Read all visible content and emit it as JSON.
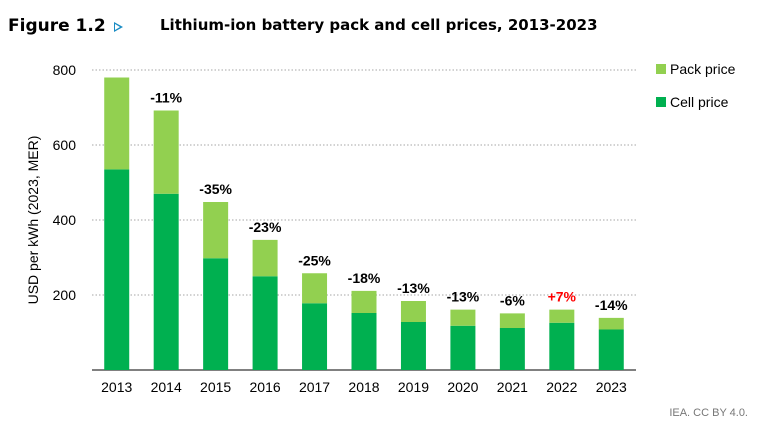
{
  "figure": {
    "number": "Figure 1.2",
    "arrow_icon": "triangle-right-outline-icon"
  },
  "credit": "IEA. CC BY 4.0.",
  "colors": {
    "pack": "#92d050",
    "cell": "#00b050",
    "change_default": "#000000",
    "change_increase": "#ff0000",
    "gridline": "#a6a6a6"
  },
  "chart_data": {
    "type": "bar",
    "stacked": true,
    "title": "Lithium-ion battery pack and cell prices, 2013-2023",
    "xlabel": "",
    "ylabel": "USD per kWh (2023, MER)",
    "ylim": [
      0,
      800
    ],
    "yticks": [
      200,
      400,
      600,
      800
    ],
    "grid": "dotted horizontal",
    "legend_position": "top-right",
    "categories": [
      "2013",
      "2014",
      "2015",
      "2016",
      "2017",
      "2018",
      "2019",
      "2020",
      "2021",
      "2022",
      "2023"
    ],
    "series": [
      {
        "name": "Cell price",
        "values": [
          535,
          470,
          298,
          250,
          178,
          152,
          128,
          118,
          112,
          126,
          108
        ]
      },
      {
        "name": "Pack price",
        "values": [
          245,
          222,
          150,
          97,
          80,
          59,
          56,
          43,
          39,
          35,
          31
        ]
      }
    ],
    "legend_order": [
      "Pack price",
      "Cell price"
    ],
    "annotations": [
      "",
      "-11%",
      "-35%",
      "-23%",
      "-25%",
      "-18%",
      "-13%",
      "-13%",
      "-6%",
      "+7%",
      "-14%"
    ]
  }
}
